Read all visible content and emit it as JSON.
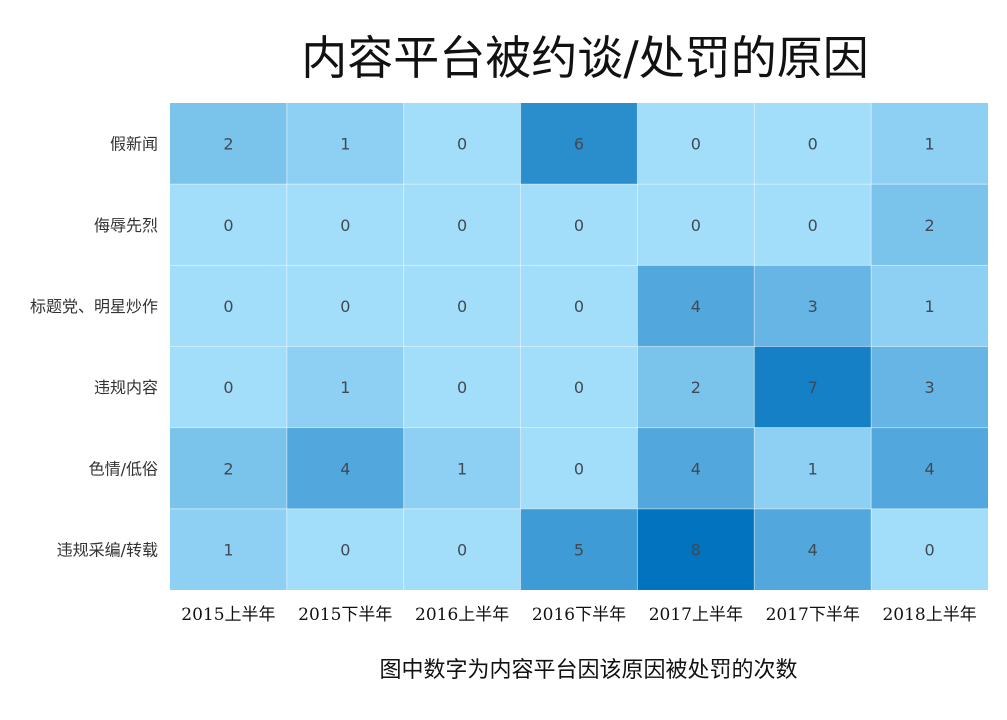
{
  "chart_data": {
    "type": "heatmap",
    "title": "内容平台被约谈/处罚的原因",
    "caption": "图中数字为内容平台因该原因被处罚的次数",
    "x_categories": [
      "2015上半年",
      "2015下半年",
      "2016上半年",
      "2016下半年",
      "2017上半年",
      "2017下半年",
      "2018上半年"
    ],
    "y_categories": [
      "假新闻",
      "侮辱先烈",
      "标题党、明星炒作",
      "违规内容",
      "色情/低俗",
      "违规采编/转载"
    ],
    "values": [
      [
        2,
        1,
        0,
        6,
        0,
        0,
        1
      ],
      [
        0,
        0,
        0,
        0,
        0,
        0,
        2
      ],
      [
        0,
        0,
        0,
        0,
        4,
        3,
        1
      ],
      [
        0,
        1,
        0,
        0,
        2,
        7,
        3
      ],
      [
        2,
        4,
        1,
        0,
        4,
        1,
        4
      ],
      [
        1,
        0,
        0,
        5,
        8,
        4,
        0
      ]
    ],
    "value_range": [
      0,
      8
    ],
    "color_scale": [
      "#a2ddfa",
      "#0273be"
    ],
    "grid": true,
    "legend": "none"
  }
}
